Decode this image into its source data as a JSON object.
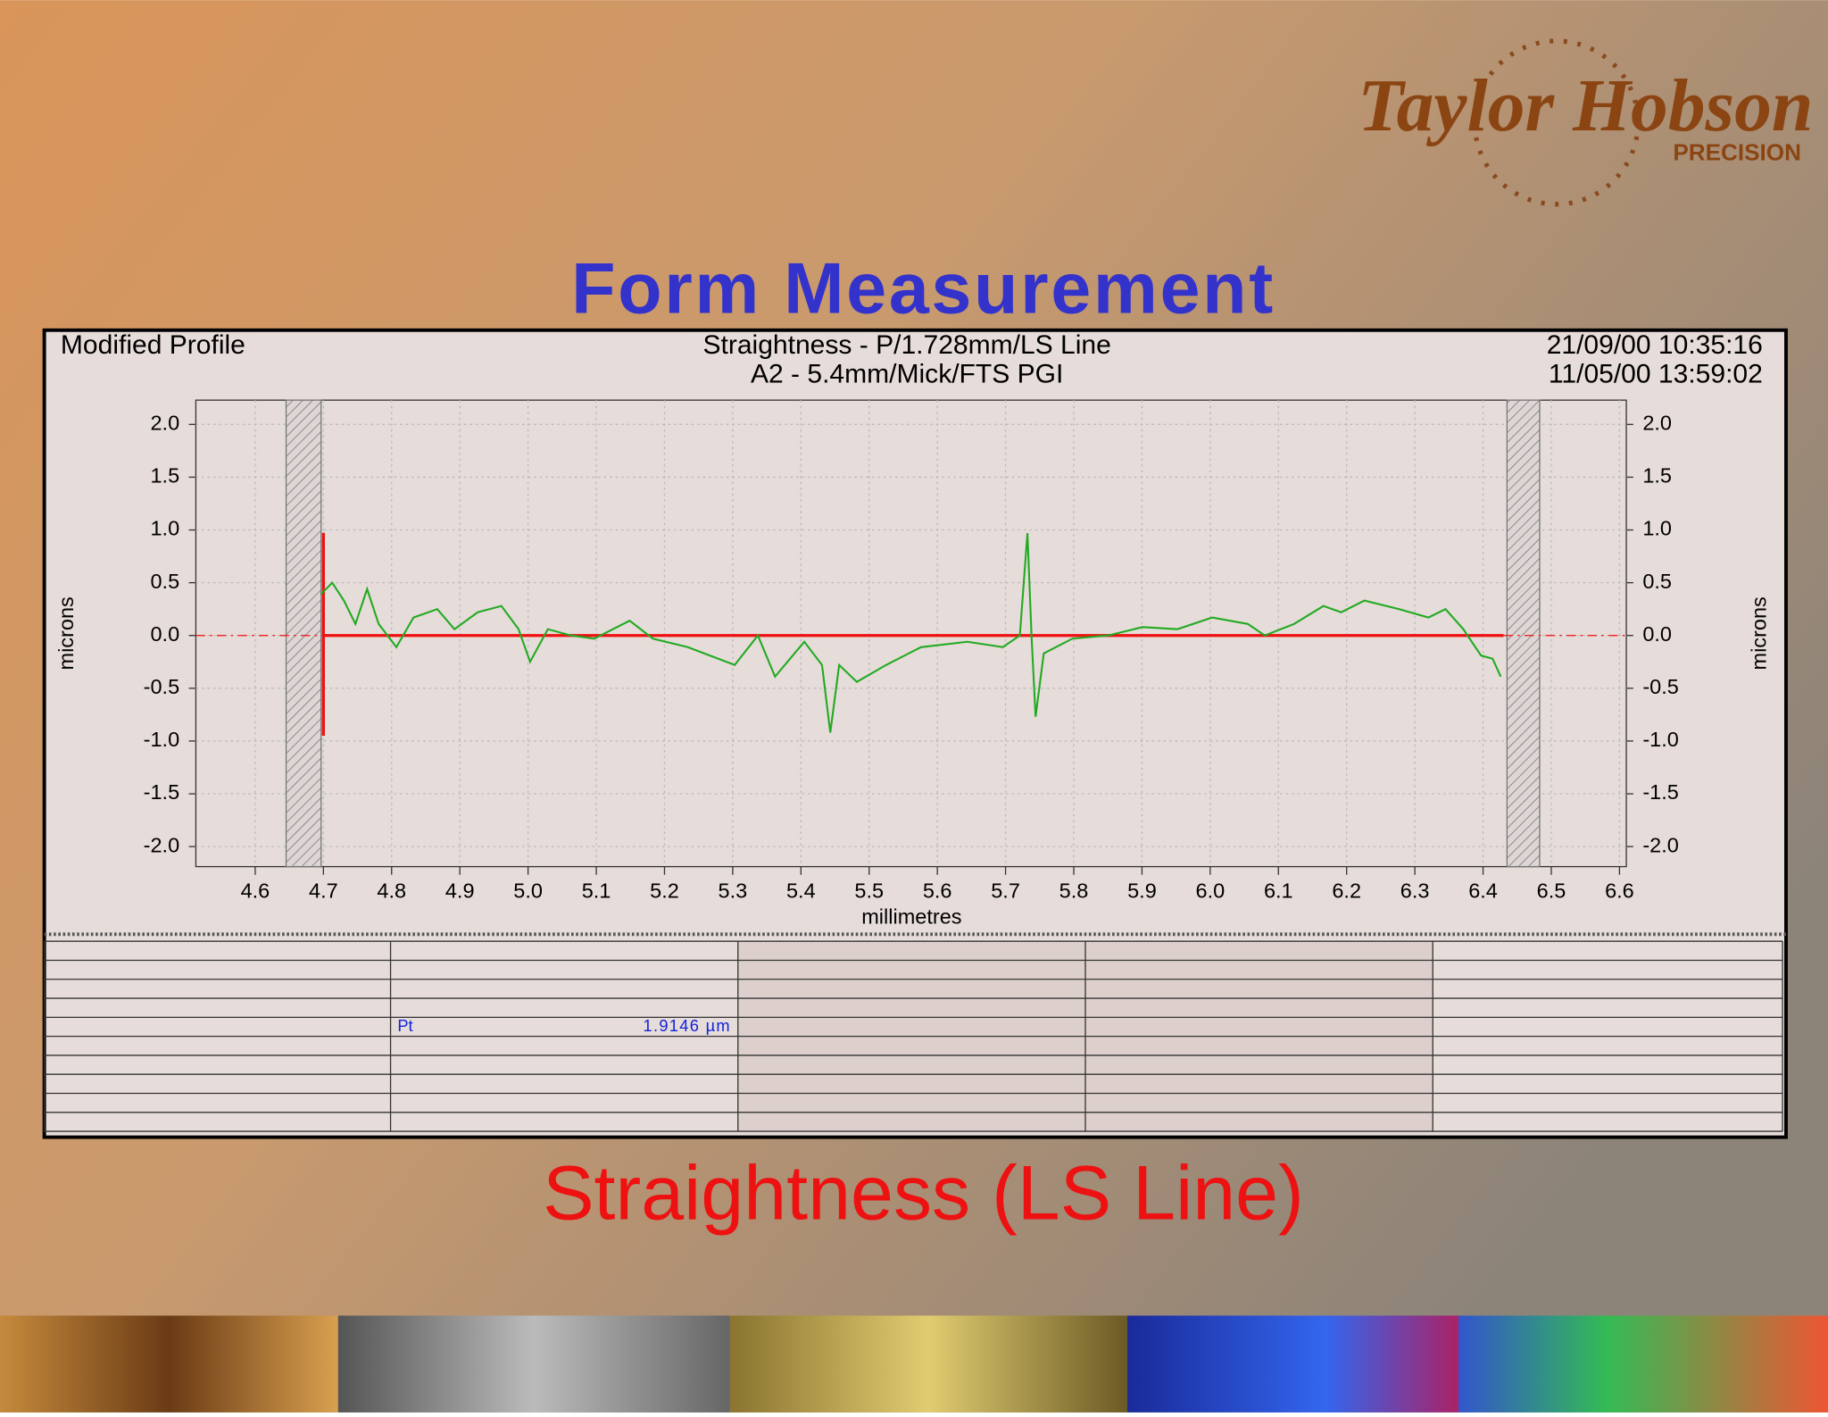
{
  "logo": {
    "name": "Taylor Hobson",
    "tagline": "PRECISION"
  },
  "title": "Form Measurement",
  "caption": "Straightness (LS Line)",
  "chart_data": {
    "type": "line",
    "header": {
      "left": "Modified Profile",
      "center": [
        "Straightness - P/1.728mm/LS Line",
        "A2 - 5.4mm/Mick/FTS PGI"
      ],
      "right": [
        "21/09/00 10:35:16",
        "11/05/00 13:59:02"
      ]
    },
    "ylabel": "microns",
    "xlabel": "millimetres",
    "xlim": [
      4.513,
      6.61
    ],
    "ylim": [
      -2.19,
      2.23
    ],
    "grid": true,
    "xticks": [
      4.6,
      4.7,
      4.8,
      4.9,
      {
        "value": 5,
        "label": "5.0"
      },
      5.1,
      5.2,
      5.3,
      5.4,
      5.5,
      5.6,
      5.7,
      5.8,
      5.9,
      {
        "value": 6,
        "label": "6.0"
      },
      6.1,
      6.2,
      6.3,
      6.4,
      6.5,
      6.6
    ],
    "yticks": [
      {
        "value": 2,
        "label": "2.0"
      },
      1.5,
      {
        "value": 1,
        "label": "1.0"
      },
      0.5,
      {
        "value": 0,
        "label": "0.0"
      },
      -0.5,
      {
        "value": -1,
        "label": "-1.0"
      },
      -1.5,
      {
        "value": -2,
        "label": "-2.0"
      }
    ],
    "series": [
      {
        "color": "#22aa22",
        "x": [
          4.696,
          4.713,
          4.73,
          4.747,
          4.764,
          4.781,
          4.807,
          4.832,
          4.867,
          4.892,
          4.926,
          4.961,
          4.986,
          5.003,
          5.029,
          5.063,
          5.097,
          5.149,
          5.183,
          5.234,
          5.303,
          5.337,
          5.362,
          5.405,
          5.431,
          5.443,
          5.456,
          5.482,
          5.525,
          5.576,
          5.644,
          5.696,
          5.721,
          5.732,
          5.738,
          5.744,
          5.756,
          5.798,
          5.85,
          5.901,
          5.952,
          6.003,
          6.055,
          6.08,
          6.123,
          6.166,
          6.192,
          6.226,
          6.277,
          6.32,
          6.345,
          6.371,
          6.397,
          6.414,
          6.426
        ],
        "values": [
          0.39,
          0.5,
          0.33,
          0.11,
          0.44,
          0.11,
          -0.11,
          0.17,
          0.25,
          0.06,
          0.22,
          0.28,
          0.06,
          -0.25,
          0.06,
          0,
          -0.03,
          0.14,
          -0.03,
          -0.11,
          -0.28,
          0,
          -0.39,
          -0.06,
          -0.28,
          -0.92,
          -0.28,
          -0.44,
          -0.28,
          -0.11,
          -0.06,
          -0.11,
          0,
          0.97,
          0,
          -0.77,
          -0.17,
          -0.03,
          0,
          0.08,
          0.06,
          0.17,
          0.11,
          0,
          0.11,
          0.28,
          0.22,
          0.33,
          0.25,
          0.17,
          0.25,
          0.06,
          -0.19,
          -0.22,
          -0.39
        ]
      },
      {
        "color": "#ee1111",
        "x": [
          4.7,
          6.43
        ],
        "values": [
          0,
          0
        ]
      }
    ]
  },
  "results": [
    {
      "name": "Pt",
      "value": "1.9146 µm"
    }
  ]
}
